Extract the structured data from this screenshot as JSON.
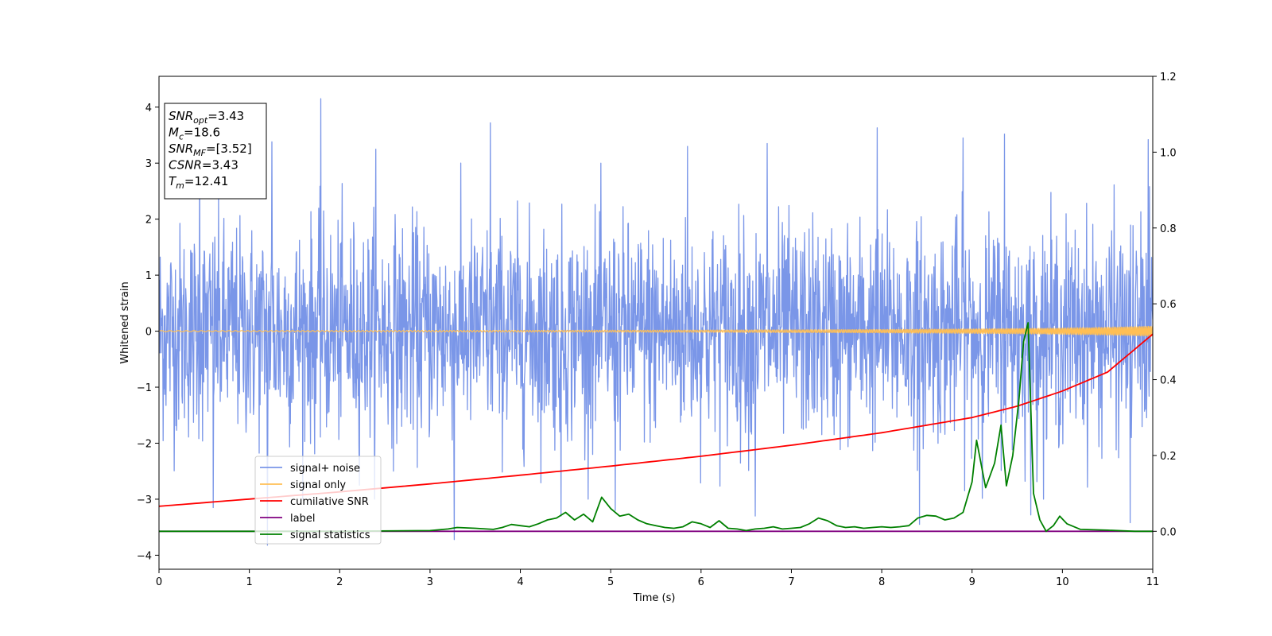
{
  "chart_data": {
    "type": "line",
    "xlabel": "Time (s)",
    "ylabel": "Whitened strain",
    "xlim": [
      0,
      11
    ],
    "ylim": [
      -4.25,
      4.55
    ],
    "y2lim": [
      -0.1,
      1.2
    ],
    "xticks": [
      0,
      1,
      2,
      3,
      4,
      5,
      6,
      7,
      8,
      9,
      10,
      11
    ],
    "yticks": [
      -4,
      -3,
      -2,
      -1,
      0,
      1,
      2,
      3,
      4
    ],
    "y2ticks": [
      "0.0",
      "0.2",
      "0.4",
      "0.6",
      "0.8",
      "1.0",
      "1.2"
    ],
    "grid": false,
    "legend_position": "lower-left",
    "colors": {
      "signal_noise": "#7a96e8",
      "signal_only": "#ffbf55",
      "cumulative_snr": "#ff0000",
      "label": "#800080",
      "signal_statistics": "#008000"
    },
    "annotation": [
      {
        "sym": "SNR",
        "sub": "opt",
        "value": "=3.43"
      },
      {
        "sym": "M",
        "sub": "c",
        "value": "=18.6"
      },
      {
        "sym": "SNR",
        "sub": "MF",
        "value": "=[3.52]"
      },
      {
        "sym": "CSNR",
        "sub": "",
        "value": "=3.43"
      },
      {
        "sym": "T",
        "sub": "m",
        "value": "=12.41"
      }
    ],
    "series": [
      {
        "name": "signal+ noise",
        "axis": "left",
        "kind": "noise",
        "std": 0.95,
        "samples_per_second": 220,
        "spikes": [
          [
            1.79,
            4.15
          ],
          [
            3.67,
            3.72
          ],
          [
            7.95,
            3.63
          ],
          [
            10.75,
            3.62
          ],
          [
            9.36,
            3.52
          ],
          [
            0.45,
            3.3
          ],
          [
            1.25,
            3.38
          ],
          [
            2.4,
            3.25
          ],
          [
            5.85,
            3.3
          ],
          [
            6.73,
            3.35
          ],
          [
            8.9,
            3.45
          ],
          [
            10.95,
            3.42
          ],
          [
            1.2,
            -3.82
          ],
          [
            3.27,
            -3.72
          ],
          [
            8.42,
            -3.45
          ],
          [
            10.75,
            -3.42
          ],
          [
            0.6,
            -3.15
          ],
          [
            4.45,
            -3.3
          ],
          [
            6.6,
            -3.3
          ],
          [
            9.65,
            -3.28
          ],
          [
            5.05,
            -3.2
          ]
        ]
      },
      {
        "name": "signal only",
        "axis": "left",
        "kind": "chirp",
        "x": [
          0,
          2,
          4,
          6,
          8,
          9,
          10,
          10.5,
          11
        ],
        "amplitude": [
          0.01,
          0.012,
          0.015,
          0.02,
          0.03,
          0.04,
          0.055,
          0.07,
          0.09
        ]
      },
      {
        "name": "cumilative SNR",
        "axis": "right",
        "x": [
          0,
          1,
          2,
          3,
          4,
          5,
          6,
          7,
          8,
          9,
          9.5,
          10,
          10.5,
          11
        ],
        "y": [
          0.066,
          0.085,
          0.104,
          0.125,
          0.148,
          0.172,
          0.198,
          0.227,
          0.26,
          0.3,
          0.33,
          0.37,
          0.42,
          0.52
        ]
      },
      {
        "name": "label",
        "axis": "right",
        "x": [
          0,
          11
        ],
        "y": [
          0.0,
          0.0
        ]
      },
      {
        "name": "signal statistics",
        "axis": "right",
        "x": [
          0,
          1.0,
          2.0,
          3.0,
          3.1,
          3.2,
          3.3,
          3.5,
          3.7,
          3.8,
          3.9,
          4.0,
          4.1,
          4.2,
          4.3,
          4.4,
          4.5,
          4.6,
          4.7,
          4.8,
          4.9,
          5.0,
          5.1,
          5.2,
          5.3,
          5.4,
          5.5,
          5.6,
          5.7,
          5.8,
          5.9,
          6.0,
          6.1,
          6.2,
          6.3,
          6.4,
          6.5,
          6.6,
          6.7,
          6.8,
          6.9,
          7.0,
          7.1,
          7.2,
          7.3,
          7.4,
          7.5,
          7.6,
          7.7,
          7.8,
          7.9,
          8.0,
          8.1,
          8.2,
          8.3,
          8.4,
          8.5,
          8.6,
          8.7,
          8.8,
          8.9,
          9.0,
          9.05,
          9.15,
          9.25,
          9.32,
          9.38,
          9.45,
          9.52,
          9.57,
          9.62,
          9.68,
          9.75,
          9.82,
          9.9,
          9.97,
          10.05,
          10.2,
          10.5,
          10.8,
          11.0
        ],
        "y": [
          0.0,
          0.0,
          0.0,
          0.002,
          0.004,
          0.006,
          0.01,
          0.008,
          0.005,
          0.01,
          0.018,
          0.015,
          0.012,
          0.02,
          0.03,
          0.035,
          0.05,
          0.03,
          0.045,
          0.025,
          0.09,
          0.06,
          0.04,
          0.045,
          0.03,
          0.02,
          0.015,
          0.01,
          0.008,
          0.012,
          0.025,
          0.02,
          0.01,
          0.028,
          0.008,
          0.006,
          0.002,
          0.006,
          0.008,
          0.012,
          0.006,
          0.008,
          0.01,
          0.02,
          0.035,
          0.028,
          0.015,
          0.01,
          0.012,
          0.008,
          0.01,
          0.012,
          0.01,
          0.012,
          0.015,
          0.035,
          0.042,
          0.04,
          0.03,
          0.035,
          0.05,
          0.13,
          0.24,
          0.115,
          0.18,
          0.28,
          0.12,
          0.2,
          0.35,
          0.5,
          0.55,
          0.1,
          0.03,
          0.0,
          0.015,
          0.04,
          0.02,
          0.005,
          0.003,
          0.0,
          0.0
        ]
      }
    ]
  }
}
